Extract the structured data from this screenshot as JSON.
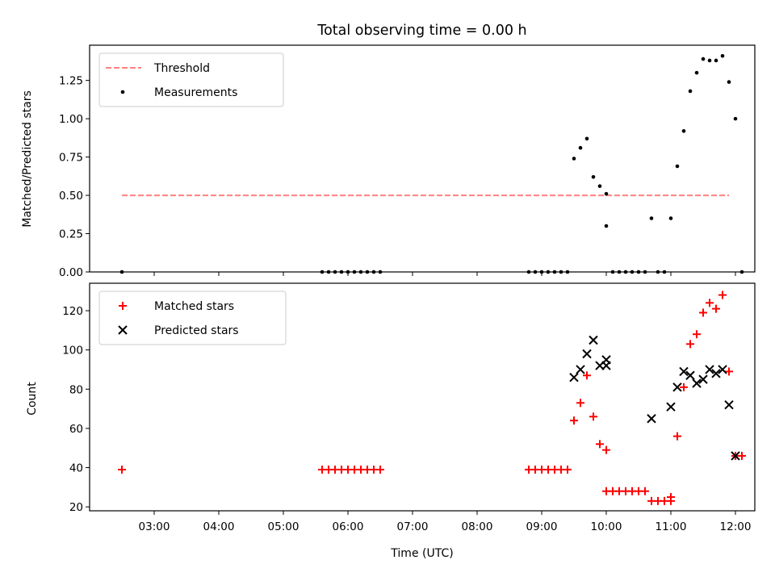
{
  "figure": {
    "title": "Total observing time = 0.00 h"
  },
  "chart_data": [
    {
      "type": "scatter",
      "ylabel": "Matched/Predicted stars",
      "xlabel": "",
      "xlim": [
        "02:00",
        "12:18"
      ],
      "ylim": [
        0,
        1.48
      ],
      "yticks": [
        0.0,
        0.25,
        0.5,
        0.75,
        1.0,
        1.25
      ],
      "ytick_labels": [
        "0.00",
        "0.25",
        "0.50",
        "0.75",
        "1.00",
        "1.25"
      ],
      "legend_position": "top-left",
      "threshold": {
        "name": "Threshold",
        "color": "#ff8080",
        "style": "dashed",
        "y": 0.5,
        "x_range": [
          "02:30",
          "11:54"
        ]
      },
      "series": [
        {
          "name": "Measurements",
          "color": "#000000",
          "marker": "dot",
          "points": [
            [
              "02:30",
              0.0
            ],
            [
              "05:36",
              0.0
            ],
            [
              "05:42",
              0.0
            ],
            [
              "05:48",
              0.0
            ],
            [
              "05:54",
              0.0
            ],
            [
              "06:00",
              0.0
            ],
            [
              "06:06",
              0.0
            ],
            [
              "06:12",
              0.0
            ],
            [
              "06:18",
              0.0
            ],
            [
              "06:24",
              0.0
            ],
            [
              "06:30",
              0.0
            ],
            [
              "08:48",
              0.0
            ],
            [
              "08:54",
              0.0
            ],
            [
              "09:00",
              0.0
            ],
            [
              "09:06",
              0.0
            ],
            [
              "09:12",
              0.0
            ],
            [
              "09:18",
              0.0
            ],
            [
              "09:24",
              0.0
            ],
            [
              "09:30",
              0.74
            ],
            [
              "09:36",
              0.81
            ],
            [
              "09:42",
              0.87
            ],
            [
              "09:48",
              0.62
            ],
            [
              "09:54",
              0.56
            ],
            [
              "09:60",
              0.51
            ],
            [
              "10:00",
              0.3
            ],
            [
              "10:06",
              0.0
            ],
            [
              "10:12",
              0.0
            ],
            [
              "10:18",
              0.0
            ],
            [
              "10:24",
              0.0
            ],
            [
              "10:30",
              0.0
            ],
            [
              "10:36",
              0.0
            ],
            [
              "10:42",
              0.35
            ],
            [
              "10:48",
              0.0
            ],
            [
              "10:54",
              0.0
            ],
            [
              "11:00",
              0.35
            ],
            [
              "11:06",
              0.69
            ],
            [
              "11:12",
              0.92
            ],
            [
              "11:18",
              1.18
            ],
            [
              "11:24",
              1.3
            ],
            [
              "11:30",
              1.39
            ],
            [
              "11:36",
              1.38
            ],
            [
              "11:42",
              1.38
            ],
            [
              "11:48",
              1.41
            ],
            [
              "11:54",
              1.24
            ],
            [
              "11:60",
              1.0
            ],
            [
              "12:06",
              0.0
            ]
          ]
        }
      ]
    },
    {
      "type": "scatter",
      "ylabel": "Count",
      "xlabel": "Time (UTC)",
      "xlim": [
        "02:00",
        "12:18"
      ],
      "ylim": [
        18,
        134
      ],
      "yticks": [
        20,
        40,
        60,
        80,
        100,
        120
      ],
      "ytick_labels": [
        "20",
        "40",
        "60",
        "80",
        "100",
        "120"
      ],
      "xticks": [
        "03:00",
        "04:00",
        "05:00",
        "06:00",
        "07:00",
        "08:00",
        "09:00",
        "10:00",
        "11:00",
        "12:00"
      ],
      "legend_position": "top-left",
      "series": [
        {
          "name": "Matched stars",
          "color": "#ff0000",
          "marker": "plus",
          "points": [
            [
              "02:30",
              39
            ],
            [
              "05:36",
              39
            ],
            [
              "05:42",
              39
            ],
            [
              "05:48",
              39
            ],
            [
              "05:54",
              39
            ],
            [
              "06:00",
              39
            ],
            [
              "06:06",
              39
            ],
            [
              "06:12",
              39
            ],
            [
              "06:18",
              39
            ],
            [
              "06:24",
              39
            ],
            [
              "06:30",
              39
            ],
            [
              "08:48",
              39
            ],
            [
              "08:54",
              39
            ],
            [
              "09:00",
              39
            ],
            [
              "09:06",
              39
            ],
            [
              "09:12",
              39
            ],
            [
              "09:18",
              39
            ],
            [
              "09:24",
              39
            ],
            [
              "09:30",
              64
            ],
            [
              "09:36",
              73
            ],
            [
              "09:42",
              87
            ],
            [
              "09:48",
              66
            ],
            [
              "09:54",
              52
            ],
            [
              "09:60",
              49
            ],
            [
              "10:00",
              28
            ],
            [
              "10:06",
              28
            ],
            [
              "10:12",
              28
            ],
            [
              "10:18",
              28
            ],
            [
              "10:24",
              28
            ],
            [
              "10:30",
              28
            ],
            [
              "10:36",
              28
            ],
            [
              "10:42",
              23
            ],
            [
              "10:48",
              23
            ],
            [
              "10:54",
              23
            ],
            [
              "11:00",
              23
            ],
            [
              "11:00",
              25
            ],
            [
              "11:06",
              56
            ],
            [
              "11:12",
              81
            ],
            [
              "11:18",
              103
            ],
            [
              "11:24",
              108
            ],
            [
              "11:30",
              119
            ],
            [
              "11:36",
              124
            ],
            [
              "11:42",
              121
            ],
            [
              "11:48",
              128
            ],
            [
              "11:54",
              89
            ],
            [
              "11:60",
              46
            ],
            [
              "12:06",
              46
            ]
          ]
        },
        {
          "name": "Predicted stars",
          "color": "#000000",
          "marker": "x",
          "points": [
            [
              "09:30",
              86
            ],
            [
              "09:36",
              90
            ],
            [
              "09:42",
              98
            ],
            [
              "09:48",
              105
            ],
            [
              "09:54",
              92
            ],
            [
              "09:60",
              95
            ],
            [
              "10:00",
              92
            ],
            [
              "10:42",
              65
            ],
            [
              "11:00",
              71
            ],
            [
              "11:06",
              81
            ],
            [
              "11:12",
              89
            ],
            [
              "11:18",
              87
            ],
            [
              "11:24",
              83
            ],
            [
              "11:30",
              85
            ],
            [
              "11:36",
              90
            ],
            [
              "11:42",
              88
            ],
            [
              "11:48",
              90
            ],
            [
              "11:54",
              72
            ],
            [
              "11:60",
              46
            ]
          ]
        }
      ]
    }
  ]
}
